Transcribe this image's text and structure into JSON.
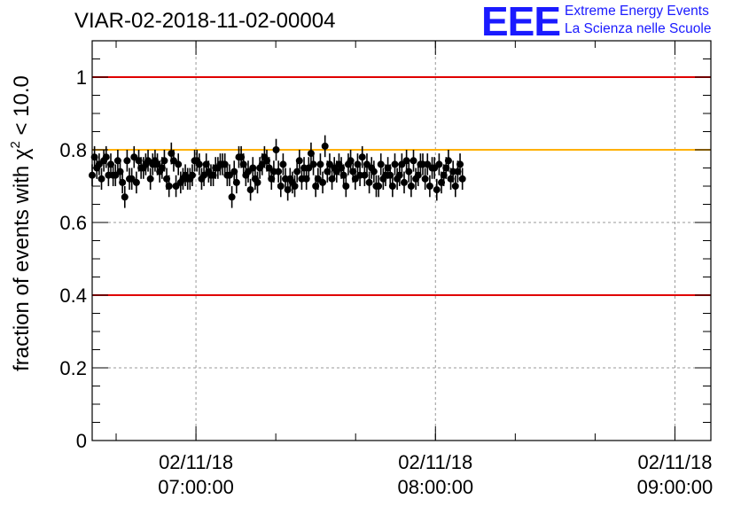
{
  "title": "VIAR-02-2018-11-02-00004",
  "logo": {
    "mark": "EEE",
    "line1": "Extreme Energy Events",
    "line2": "La Scienza nelle Scuole"
  },
  "colors": {
    "reference_red": "#e00000",
    "reference_orange": "#ffb000",
    "points": "#000000",
    "logo": "#1a1aff"
  },
  "chart_data": {
    "type": "scatter",
    "title": "VIAR-02-2018-11-02-00004",
    "ylabel_prefix": "fraction of events with ",
    "ylabel_symbol": "χ",
    "ylabel_exp": "2",
    "ylabel_suffix": " < 10.0",
    "xlabel": "",
    "ylim": [
      0,
      1.1
    ],
    "xlim": [
      "2018-11-02 06:34",
      "2018-11-02 09:09"
    ],
    "grid": true,
    "yticks": [
      "0",
      "0.2",
      "0.4",
      "0.6",
      "0.8",
      "1"
    ],
    "xticks": [
      {
        "time": "2018-11-02 07:00",
        "date": "02/11/18",
        "clock": "07:00:00"
      },
      {
        "time": "2018-11-02 08:00",
        "date": "02/11/18",
        "clock": "08:00:00"
      },
      {
        "time": "2018-11-02 09:00",
        "date": "02/11/18",
        "clock": "09:00:00"
      }
    ],
    "reference_lines": [
      {
        "y": 1.0,
        "color": "red"
      },
      {
        "y": 0.8,
        "color": "orange"
      },
      {
        "y": 0.4,
        "color": "red"
      }
    ],
    "series": [
      {
        "start": "2018-11-02 06:34:00",
        "step_seconds": 35,
        "error": 0.03,
        "values": [
          0.73,
          0.78,
          0.75,
          0.76,
          0.72,
          0.77,
          0.78,
          0.73,
          0.76,
          0.73,
          0.73,
          0.77,
          0.74,
          0.71,
          0.67,
          0.77,
          0.72,
          0.72,
          0.78,
          0.71,
          0.77,
          0.75,
          0.75,
          0.76,
          0.77,
          0.72,
          0.76,
          0.77,
          0.76,
          0.74,
          0.75,
          0.77,
          0.72,
          0.7,
          0.79,
          0.77,
          0.7,
          0.76,
          0.71,
          0.72,
          0.73,
          0.72,
          0.72,
          0.73,
          0.77,
          0.77,
          0.76,
          0.72,
          0.73,
          0.76,
          0.74,
          0.73,
          0.73,
          0.75,
          0.75,
          0.76,
          0.76,
          0.76,
          0.73,
          0.73,
          0.67,
          0.74,
          0.71,
          0.78,
          0.78,
          0.76,
          0.73,
          0.74,
          0.69,
          0.75,
          0.72,
          0.71,
          0.75,
          0.76,
          0.78,
          0.77,
          0.75,
          0.72,
          0.74,
          0.8,
          0.74,
          0.7,
          0.76,
          0.72,
          0.69,
          0.72,
          0.71,
          0.7,
          0.74,
          0.77,
          0.72,
          0.75,
          0.72,
          0.75,
          0.79,
          0.76,
          0.7,
          0.72,
          0.76,
          0.71,
          0.81,
          0.74,
          0.76,
          0.72,
          0.75,
          0.74,
          0.76,
          0.75,
          0.73,
          0.7,
          0.76,
          0.77,
          0.74,
          0.72,
          0.76,
          0.73,
          0.78,
          0.73,
          0.76,
          0.71,
          0.75,
          0.74,
          0.7,
          0.7,
          0.76,
          0.72,
          0.73,
          0.75,
          0.73,
          0.7,
          0.76,
          0.72,
          0.73,
          0.76,
          0.71,
          0.77,
          0.74,
          0.7,
          0.77,
          0.72,
          0.73,
          0.76,
          0.76,
          0.72,
          0.76,
          0.7,
          0.75,
          0.75,
          0.69,
          0.76,
          0.71,
          0.73,
          0.75,
          0.77,
          0.72,
          0.74,
          0.7,
          0.74,
          0.76,
          0.72
        ]
      }
    ]
  }
}
